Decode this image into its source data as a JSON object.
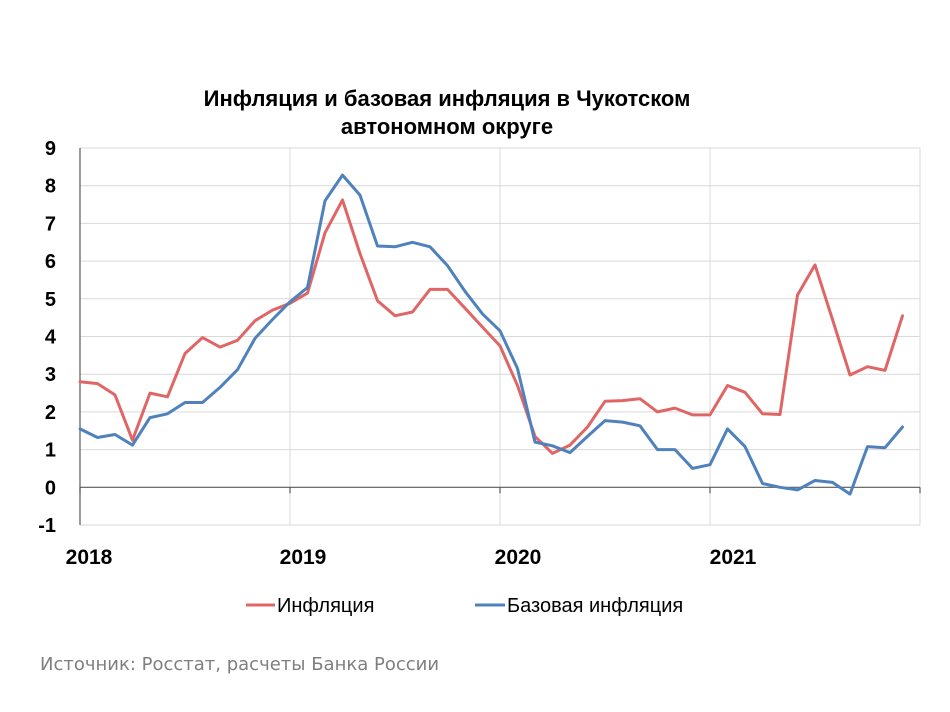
{
  "chart_data": {
    "type": "line",
    "title_line1": "Инфляция и базовая инфляция в Чукотском",
    "title_line2": "автономном округе",
    "xlabel": "",
    "ylabel": "",
    "ylim": [
      -1,
      9
    ],
    "yticks": [
      "-1",
      "0",
      "1",
      "2",
      "3",
      "4",
      "5",
      "6",
      "7",
      "8",
      "9"
    ],
    "xtick_labels": [
      "2018",
      "2019",
      "2020",
      "2021"
    ],
    "x": [
      "2018-01",
      "2018-02",
      "2018-03",
      "2018-04",
      "2018-05",
      "2018-06",
      "2018-07",
      "2018-08",
      "2018-09",
      "2018-10",
      "2018-11",
      "2018-12",
      "2019-01",
      "2019-02",
      "2019-03",
      "2019-04",
      "2019-05",
      "2019-06",
      "2019-07",
      "2019-08",
      "2019-09",
      "2019-10",
      "2019-11",
      "2019-12",
      "2020-01",
      "2020-02",
      "2020-03",
      "2020-04",
      "2020-05",
      "2020-06",
      "2020-07",
      "2020-08",
      "2020-09",
      "2020-10",
      "2020-11",
      "2020-12",
      "2021-01",
      "2021-02",
      "2021-03",
      "2021-04",
      "2021-05",
      "2021-06",
      "2021-07",
      "2021-08",
      "2021-09",
      "2021-10",
      "2021-11",
      "2021-12"
    ],
    "grid": true,
    "legend_position": "bottom",
    "series": [
      {
        "name": "Инфляция",
        "color": "#e06666",
        "values": [
          2.8,
          2.75,
          2.45,
          1.25,
          2.5,
          2.4,
          3.55,
          3.97,
          3.72,
          3.9,
          4.42,
          4.7,
          4.88,
          5.15,
          6.75,
          7.62,
          6.2,
          4.95,
          4.55,
          4.65,
          5.25,
          5.25,
          4.75,
          4.25,
          3.75,
          2.7,
          1.35,
          0.9,
          1.12,
          1.6,
          2.28,
          2.3,
          2.35,
          2.0,
          2.1,
          1.92,
          1.92,
          2.7,
          2.52,
          1.95,
          1.93,
          5.1,
          5.9,
          4.45,
          2.98,
          3.2,
          3.1,
          4.55
        ]
      },
      {
        "name": "Базовая инфляция",
        "color": "#4f81bd",
        "values": [
          1.55,
          1.32,
          1.4,
          1.12,
          1.85,
          1.95,
          2.25,
          2.25,
          2.65,
          3.12,
          3.95,
          4.45,
          4.92,
          5.3,
          7.6,
          8.28,
          7.75,
          6.4,
          6.38,
          6.5,
          6.38,
          5.88,
          5.2,
          4.6,
          4.15,
          3.15,
          1.2,
          1.1,
          0.92,
          1.35,
          1.77,
          1.73,
          1.63,
          1.0,
          1.0,
          0.5,
          0.6,
          1.55,
          1.08,
          0.1,
          0.0,
          -0.07,
          0.18,
          0.13,
          -0.18,
          1.08,
          1.05,
          1.6
        ]
      }
    ]
  },
  "source": "Источник: Росстат, расчеты Банка России"
}
